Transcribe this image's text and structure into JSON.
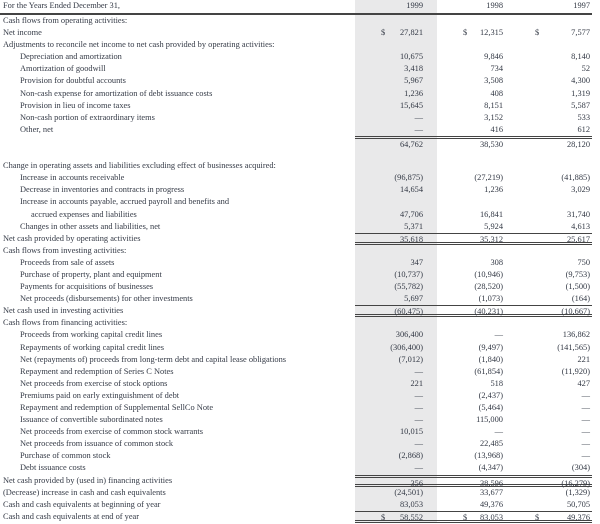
{
  "header": {
    "label": "For the Years Ended December 31,",
    "years": [
      "1999",
      "1998",
      "1997"
    ]
  },
  "highlight_color": "#e9e9ea",
  "rows": [
    {
      "label": "Cash flows from operating activities:",
      "indent": 0,
      "values": [
        "",
        "",
        ""
      ]
    },
    {
      "label": "Net income",
      "indent": 0,
      "values": [
        "27,821",
        "12,315",
        "7,577"
      ],
      "dollar": true
    },
    {
      "label": "Adjustments to reconcile net income to net cash provided by operating activities:",
      "indent": 0,
      "values": [
        "",
        "",
        ""
      ]
    },
    {
      "label": "Depreciation and amortization",
      "indent": 1,
      "values": [
        "10,675",
        "9,846",
        "8,140"
      ]
    },
    {
      "label": "Amortization of goodwill",
      "indent": 1,
      "values": [
        "3,418",
        "734",
        "52"
      ]
    },
    {
      "label": "Provision for doubtful accounts",
      "indent": 1,
      "values": [
        "5,967",
        "3,508",
        "4,300"
      ]
    },
    {
      "label": "Non-cash expense for amortization of debt issuance costs",
      "indent": 1,
      "values": [
        "1,236",
        "408",
        "1,319"
      ]
    },
    {
      "label": "Provision in lieu of income taxes",
      "indent": 1,
      "values": [
        "15,645",
        "8,151",
        "5,587"
      ]
    },
    {
      "label": "Non-cash portion of extraordinary items",
      "indent": 1,
      "values": [
        "—",
        "3,152",
        "533"
      ]
    },
    {
      "label": "Other, net",
      "indent": 1,
      "values": [
        "—",
        "416",
        "612"
      ]
    },
    {
      "label": "",
      "indent": 0,
      "values": [
        "64,762",
        "38,530",
        "28,120"
      ],
      "rule": "dtop"
    },
    {
      "label": "",
      "indent": 0,
      "values": [
        "",
        "",
        ""
      ]
    },
    {
      "label": "Change in operating assets and liabilities excluding effect of businesses acquired:",
      "indent": 0,
      "values": [
        "",
        "",
        ""
      ]
    },
    {
      "label": "Increase in accounts receivable",
      "indent": 1,
      "values": [
        "(96,875)",
        "(27,219)",
        "(41,885)"
      ]
    },
    {
      "label": "Decrease in inventories and contracts in progress",
      "indent": 1,
      "values": [
        "14,654",
        "1,236",
        "3,029"
      ]
    },
    {
      "label": "Increase in accounts payable, accrued payroll and benefits and",
      "indent": 1,
      "values": [
        "",
        "",
        ""
      ]
    },
    {
      "label": "accrued expenses and liabilities",
      "indent": 2,
      "values": [
        "47,706",
        "16,841",
        "31,740"
      ]
    },
    {
      "label": "Changes in other assets and liabilities, net",
      "indent": 1,
      "values": [
        "5,371",
        "5,924",
        "4,613"
      ]
    },
    {
      "label": "Net cash provided by operating activities",
      "indent": 0,
      "values": [
        "35,618",
        "35,312",
        "25,617"
      ],
      "rule": "top dbot"
    },
    {
      "label": "Cash flows from investing activities:",
      "indent": 0,
      "values": [
        "",
        "",
        ""
      ]
    },
    {
      "label": "Proceeds from sale of assets",
      "indent": 1,
      "values": [
        "347",
        "308",
        "750"
      ]
    },
    {
      "label": "Purchase of property, plant and equipment",
      "indent": 1,
      "values": [
        "(10,737)",
        "(10,946)",
        "(9,753)"
      ]
    },
    {
      "label": "Payments for acquisitions of businesses",
      "indent": 1,
      "values": [
        "(55,782)",
        "(28,520)",
        "(1,500)"
      ]
    },
    {
      "label": "Net proceeds (disbursements) for other investments",
      "indent": 1,
      "values": [
        "5,697",
        "(1,073)",
        "(164)"
      ]
    },
    {
      "label": "Net cash used in investing activities",
      "indent": 0,
      "values": [
        "(60,475)",
        "(40,231)",
        "(10,667)"
      ],
      "rule": "top dbot"
    },
    {
      "label": "Cash flows from financing activities:",
      "indent": 0,
      "values": [
        "",
        "",
        ""
      ]
    },
    {
      "label": "Proceeds from working capital credit lines",
      "indent": 1,
      "values": [
        "306,400",
        "—",
        "136,862"
      ]
    },
    {
      "label": "Repayments of working capital credit lines",
      "indent": 1,
      "values": [
        "(306,400)",
        "(9,497)",
        "(141,565)"
      ]
    },
    {
      "label": "Net (repayments of) proceeds from long-term debt and capital lease obligations",
      "indent": 1,
      "values": [
        "(7,012)",
        "(1,840)",
        "221"
      ]
    },
    {
      "label": "Repayment and redemption of Series C Notes",
      "indent": 1,
      "values": [
        "—",
        "(61,854)",
        "(11,920)"
      ]
    },
    {
      "label": "Net proceeds from exercise of stock options",
      "indent": 1,
      "values": [
        "221",
        "518",
        "427"
      ]
    },
    {
      "label": "Premiums paid on early extinguishment of debt",
      "indent": 1,
      "values": [
        "—",
        "(2,437)",
        "—"
      ]
    },
    {
      "label": "Repayment and redemption of Supplemental SellCo Note",
      "indent": 1,
      "values": [
        "—",
        "(5,464)",
        "—"
      ]
    },
    {
      "label": "Issuance of convertible subordinated notes",
      "indent": 1,
      "values": [
        "—",
        "115,000",
        "—"
      ]
    },
    {
      "label": "Net proceeds from exercise of common stock warrants",
      "indent": 1,
      "values": [
        "10,015",
        "—",
        "—"
      ]
    },
    {
      "label": "Net proceeds from issuance of common stock",
      "indent": 1,
      "values": [
        "—",
        "22,485",
        "—"
      ]
    },
    {
      "label": "Purchase of common stock",
      "indent": 1,
      "values": [
        "(2,868)",
        "(13,968)",
        "—"
      ]
    },
    {
      "label": "Debt issuance costs",
      "indent": 1,
      "values": [
        "—",
        "(4,347)",
        "(304)"
      ]
    },
    {
      "label": "Net cash provided by (used in) financing activities",
      "indent": 0,
      "values": [
        "356",
        "38,596",
        "(16,279)"
      ],
      "rule": "dtop dbot"
    },
    {
      "label": "(Decrease) increase in cash and cash equivalents",
      "indent": 0,
      "values": [
        "(24,501)",
        "33,677",
        "(1,329)"
      ]
    },
    {
      "label": "Cash and cash equivalents at beginning of year",
      "indent": 0,
      "values": [
        "83,053",
        "49,376",
        "50,705"
      ]
    },
    {
      "label": "Cash and cash equivalents at end of year",
      "indent": 0,
      "values": [
        "58,552",
        "83,053",
        "49,376"
      ],
      "dollar": true,
      "rule": "top dbot"
    }
  ],
  "currency_symbol": "$"
}
